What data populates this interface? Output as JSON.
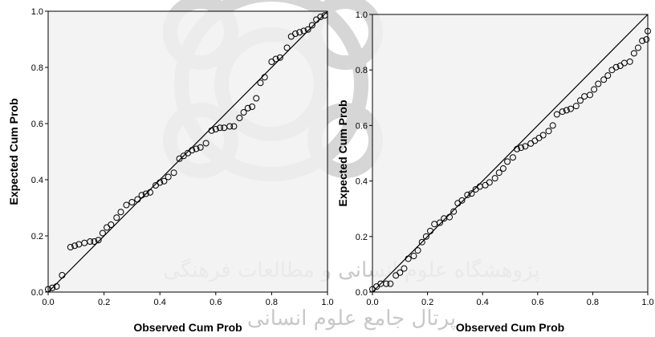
{
  "watermark": {
    "line1": "پژوهشگاه علوم انسانی و مطالعات فرهنگی",
    "line2": "پرتال جامع علوم انسانی"
  },
  "chart_data": [
    {
      "type": "scatter",
      "xlabel": "Observed Cum Prob",
      "ylabel": "Expected Cum Prob",
      "xlim": [
        0,
        1
      ],
      "ylim": [
        0,
        1
      ],
      "x_ticks": [
        "0.0",
        "0.2",
        "0.4",
        "0.6",
        "0.8",
        "1.0"
      ],
      "y_ticks": [
        "0.0",
        "0.2",
        "0.4",
        "0.6",
        "0.8",
        "1.0"
      ],
      "reference_line": {
        "from": [
          0,
          0
        ],
        "to": [
          1,
          1
        ]
      },
      "grid": false,
      "background": "#f0f0f0",
      "points": [
        [
          0.0,
          0.01
        ],
        [
          0.015,
          0.015
        ],
        [
          0.03,
          0.02
        ],
        [
          0.05,
          0.06
        ],
        [
          0.08,
          0.16
        ],
        [
          0.095,
          0.165
        ],
        [
          0.11,
          0.17
        ],
        [
          0.13,
          0.175
        ],
        [
          0.15,
          0.18
        ],
        [
          0.165,
          0.18
        ],
        [
          0.18,
          0.185
        ],
        [
          0.195,
          0.21
        ],
        [
          0.21,
          0.23
        ],
        [
          0.225,
          0.24
        ],
        [
          0.245,
          0.265
        ],
        [
          0.26,
          0.285
        ],
        [
          0.28,
          0.31
        ],
        [
          0.3,
          0.32
        ],
        [
          0.32,
          0.33
        ],
        [
          0.335,
          0.345
        ],
        [
          0.35,
          0.35
        ],
        [
          0.365,
          0.355
        ],
        [
          0.385,
          0.38
        ],
        [
          0.4,
          0.39
        ],
        [
          0.415,
          0.395
        ],
        [
          0.43,
          0.41
        ],
        [
          0.45,
          0.425
        ],
        [
          0.47,
          0.475
        ],
        [
          0.485,
          0.485
        ],
        [
          0.5,
          0.495
        ],
        [
          0.515,
          0.505
        ],
        [
          0.53,
          0.51
        ],
        [
          0.545,
          0.515
        ],
        [
          0.565,
          0.53
        ],
        [
          0.585,
          0.575
        ],
        [
          0.6,
          0.58
        ],
        [
          0.615,
          0.585
        ],
        [
          0.63,
          0.585
        ],
        [
          0.65,
          0.59
        ],
        [
          0.665,
          0.59
        ],
        [
          0.685,
          0.62
        ],
        [
          0.7,
          0.64
        ],
        [
          0.715,
          0.655
        ],
        [
          0.73,
          0.66
        ],
        [
          0.745,
          0.69
        ],
        [
          0.76,
          0.745
        ],
        [
          0.775,
          0.765
        ],
        [
          0.8,
          0.82
        ],
        [
          0.815,
          0.83
        ],
        [
          0.83,
          0.835
        ],
        [
          0.855,
          0.87
        ],
        [
          0.87,
          0.91
        ],
        [
          0.885,
          0.92
        ],
        [
          0.9,
          0.925
        ],
        [
          0.915,
          0.93
        ],
        [
          0.93,
          0.935
        ],
        [
          0.945,
          0.95
        ],
        [
          0.96,
          0.97
        ],
        [
          0.975,
          0.98
        ],
        [
          0.99,
          0.985
        ]
      ]
    },
    {
      "type": "scatter",
      "xlabel": "Observed Cum Prob",
      "ylabel": "Expected Cum Prob",
      "xlim": [
        0,
        1
      ],
      "ylim": [
        0,
        1
      ],
      "x_ticks": [
        "0.0",
        "0.2",
        "0.4",
        "0.6",
        "0.8",
        "1.0"
      ],
      "y_ticks": [
        "0.0",
        "0.2",
        "0.4",
        "0.6",
        "0.8",
        "1.0"
      ],
      "reference_line": {
        "from": [
          0,
          0
        ],
        "to": [
          1,
          1
        ]
      },
      "grid": false,
      "background": "#f0f0f0",
      "points": [
        [
          0.0,
          0.01
        ],
        [
          0.015,
          0.02
        ],
        [
          0.03,
          0.03
        ],
        [
          0.05,
          0.03
        ],
        [
          0.065,
          0.03
        ],
        [
          0.085,
          0.06
        ],
        [
          0.1,
          0.07
        ],
        [
          0.115,
          0.085
        ],
        [
          0.13,
          0.12
        ],
        [
          0.15,
          0.13
        ],
        [
          0.165,
          0.15
        ],
        [
          0.18,
          0.18
        ],
        [
          0.195,
          0.2
        ],
        [
          0.21,
          0.22
        ],
        [
          0.225,
          0.245
        ],
        [
          0.245,
          0.25
        ],
        [
          0.26,
          0.265
        ],
        [
          0.28,
          0.27
        ],
        [
          0.295,
          0.29
        ],
        [
          0.31,
          0.32
        ],
        [
          0.325,
          0.33
        ],
        [
          0.345,
          0.35
        ],
        [
          0.36,
          0.355
        ],
        [
          0.375,
          0.37
        ],
        [
          0.39,
          0.38
        ],
        [
          0.41,
          0.385
        ],
        [
          0.425,
          0.395
        ],
        [
          0.445,
          0.41
        ],
        [
          0.46,
          0.43
        ],
        [
          0.475,
          0.445
        ],
        [
          0.49,
          0.47
        ],
        [
          0.51,
          0.485
        ],
        [
          0.525,
          0.515
        ],
        [
          0.54,
          0.52
        ],
        [
          0.555,
          0.525
        ],
        [
          0.575,
          0.535
        ],
        [
          0.59,
          0.545
        ],
        [
          0.605,
          0.555
        ],
        [
          0.62,
          0.565
        ],
        [
          0.64,
          0.58
        ],
        [
          0.655,
          0.6
        ],
        [
          0.67,
          0.64
        ],
        [
          0.69,
          0.65
        ],
        [
          0.705,
          0.655
        ],
        [
          0.72,
          0.66
        ],
        [
          0.74,
          0.67
        ],
        [
          0.755,
          0.69
        ],
        [
          0.77,
          0.705
        ],
        [
          0.79,
          0.71
        ],
        [
          0.805,
          0.73
        ],
        [
          0.82,
          0.75
        ],
        [
          0.84,
          0.765
        ],
        [
          0.855,
          0.78
        ],
        [
          0.87,
          0.8
        ],
        [
          0.885,
          0.81
        ],
        [
          0.9,
          0.815
        ],
        [
          0.915,
          0.825
        ],
        [
          0.935,
          0.83
        ],
        [
          0.95,
          0.86
        ],
        [
          0.965,
          0.88
        ],
        [
          0.98,
          0.905
        ],
        [
          0.995,
          0.91
        ],
        [
          1.0,
          0.94
        ]
      ]
    }
  ]
}
